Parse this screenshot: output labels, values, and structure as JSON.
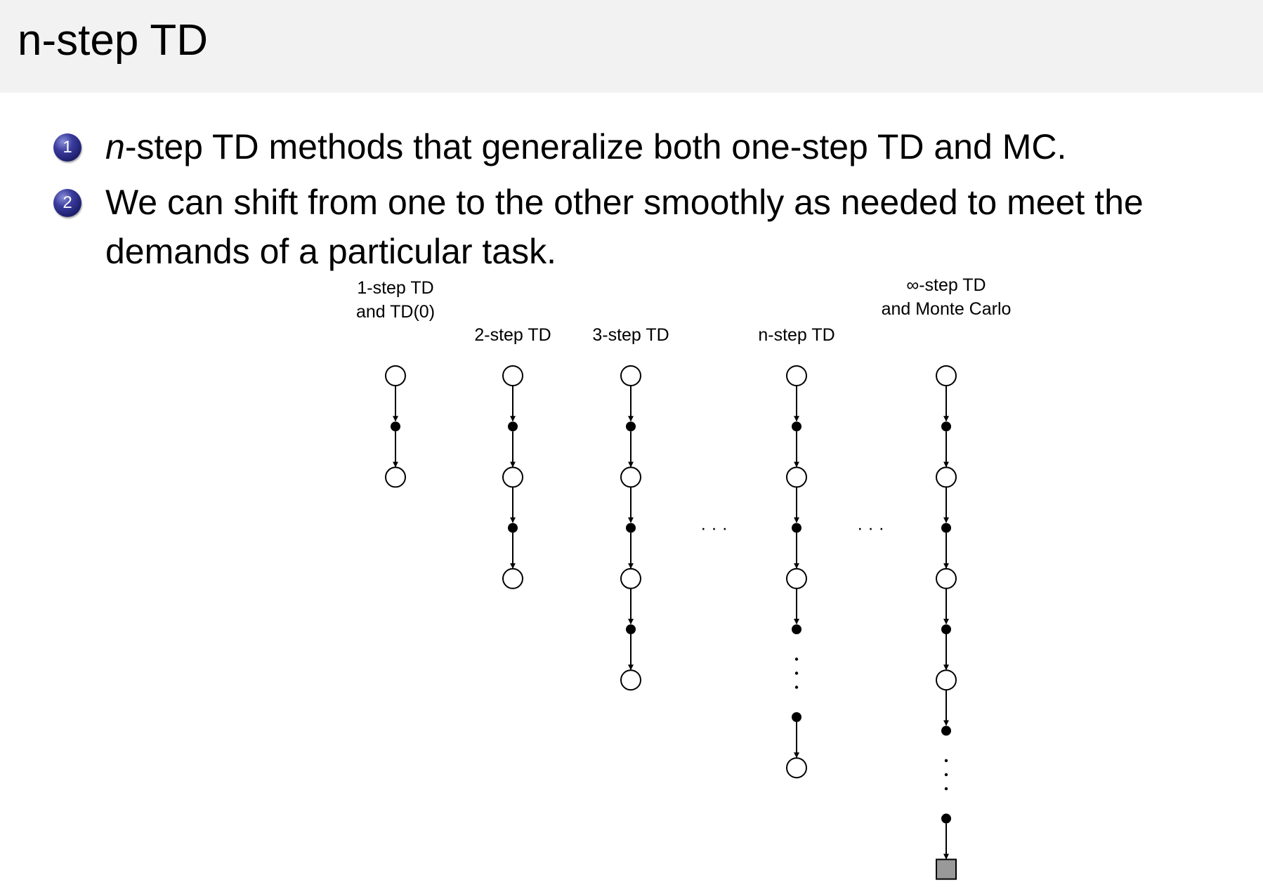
{
  "slide": {
    "title": "n-step TD",
    "bullets": [
      {
        "number": "1",
        "italic_prefix": "n",
        "text": "-step TD methods that generalize both one-step TD and MC."
      },
      {
        "number": "2",
        "line1": "We can shift from one to the other smoothly as needed to meet the",
        "line2": "demands of a particular task."
      }
    ]
  },
  "diagram": {
    "columns": [
      {
        "label_lines": [
          "1-step TD",
          "and TD(0)"
        ],
        "nodes": [
          "state",
          "action",
          "state"
        ]
      },
      {
        "label_lines": [
          "2-step TD"
        ],
        "nodes": [
          "state",
          "action",
          "state",
          "action",
          "state"
        ]
      },
      {
        "label_lines": [
          "3-step TD"
        ],
        "nodes": [
          "state",
          "action",
          "state",
          "action",
          "state",
          "action",
          "state"
        ]
      },
      {
        "label_lines": [
          "n-step TD"
        ],
        "nodes": [
          "state",
          "action",
          "state",
          "action",
          "state",
          "action",
          "ellipsis",
          "action",
          "state"
        ]
      },
      {
        "label_lines": [
          "∞-step TD",
          "and Monte Carlo"
        ],
        "nodes": [
          "state",
          "action",
          "state",
          "action",
          "state",
          "action",
          "state",
          "action",
          "ellipsis",
          "action",
          "terminal"
        ]
      }
    ],
    "between_ellipsis": "· · ·",
    "colors": {
      "terminal_fill": "#999999",
      "node_stroke": "#000000"
    }
  }
}
